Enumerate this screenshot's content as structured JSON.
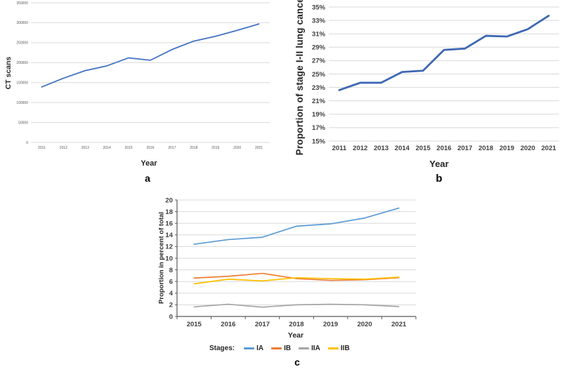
{
  "chart_data": [
    {
      "id": "a",
      "type": "line",
      "panel_label": "a",
      "xlabel": "Year",
      "ylabel": "CT scans",
      "categories": [
        "2011",
        "2012",
        "2013",
        "2014",
        "2015",
        "2016",
        "2017",
        "2018",
        "2019",
        "2020",
        "2021"
      ],
      "ylim": [
        0,
        350000
      ],
      "ytick_step": 50000,
      "ytick_format": "plain",
      "grid": true,
      "legend": "none",
      "series": [
        {
          "name": "CT scans",
          "color": "#4472C4",
          "values": [
            139000,
            161000,
            180000,
            192000,
            212000,
            206000,
            233000,
            254000,
            266000,
            281000,
            297000
          ]
        }
      ]
    },
    {
      "id": "b",
      "type": "line",
      "panel_label": "b",
      "xlabel": "Year",
      "ylabel": "Proportion of stage I-II lung cancer",
      "categories": [
        "2011",
        "2012",
        "2013",
        "2014",
        "2015",
        "2016",
        "2017",
        "2018",
        "2019",
        "2020",
        "2021"
      ],
      "ylim": [
        15,
        35
      ],
      "ytick_step": 2,
      "ytick_format": "percent",
      "grid": true,
      "legend": "none",
      "series": [
        {
          "name": "Proportion of stage I-II lung cancer",
          "color": "#3E68B2",
          "values": [
            22.6,
            23.7,
            23.7,
            25.3,
            25.5,
            28.6,
            28.8,
            30.7,
            30.6,
            31.7,
            33.7
          ]
        }
      ]
    },
    {
      "id": "c",
      "type": "line",
      "panel_label": "c",
      "xlabel": "Year",
      "ylabel": "Proportion in percent of total",
      "legend_title": "Stages:",
      "legend": "bottom",
      "categories": [
        "2015",
        "2016",
        "2017",
        "2018",
        "2019",
        "2020",
        "2021"
      ],
      "ylim": [
        0,
        20
      ],
      "ytick_step": 2,
      "ytick_format": "int",
      "grid": true,
      "series": [
        {
          "name": "IA",
          "color": "#5B9BD5",
          "values": [
            12.4,
            13.2,
            13.6,
            15.5,
            15.9,
            16.9,
            18.6
          ]
        },
        {
          "name": "IB",
          "color": "#ED7D31",
          "values": [
            6.6,
            6.9,
            7.4,
            6.5,
            6.2,
            6.3,
            6.65
          ]
        },
        {
          "name": "IIA",
          "color": "#A5A5A5",
          "values": [
            1.65,
            2.1,
            1.6,
            2.0,
            2.1,
            2.0,
            1.7
          ]
        },
        {
          "name": "IIB",
          "color": "#FFC000",
          "values": [
            5.6,
            6.4,
            6.1,
            6.65,
            6.5,
            6.4,
            6.75
          ]
        }
      ]
    }
  ]
}
